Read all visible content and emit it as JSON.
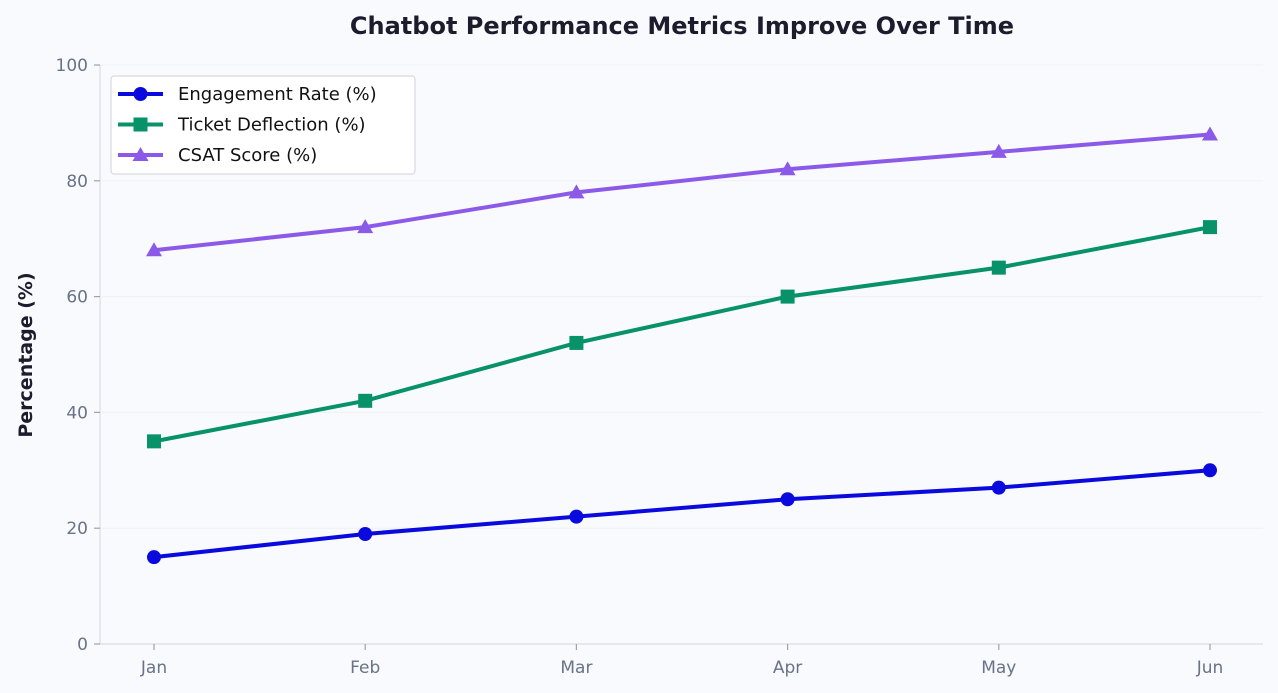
{
  "chart_data": {
    "type": "line",
    "title": "Chatbot Performance Metrics Improve Over Time",
    "xlabel": "",
    "ylabel": "Percentage (%)",
    "categories": [
      "Jan",
      "Feb",
      "Mar",
      "Apr",
      "May",
      "Jun"
    ],
    "ylim": [
      0,
      100
    ],
    "yticks": [
      0,
      20,
      40,
      60,
      80,
      100
    ],
    "grid": true,
    "legend_position": "top-left",
    "series": [
      {
        "name": "Engagement Rate (%)",
        "marker": "circle",
        "color": "#0a0adf",
        "values": [
          15,
          19,
          22,
          25,
          27,
          30
        ]
      },
      {
        "name": "Ticket Deflection (%)",
        "marker": "square",
        "color": "#07926a",
        "values": [
          35,
          42,
          52,
          60,
          65,
          72
        ]
      },
      {
        "name": "CSAT Score (%)",
        "marker": "triangle",
        "color": "#8b5ae8",
        "values": [
          68,
          72,
          78,
          82,
          85,
          88
        ]
      }
    ]
  }
}
